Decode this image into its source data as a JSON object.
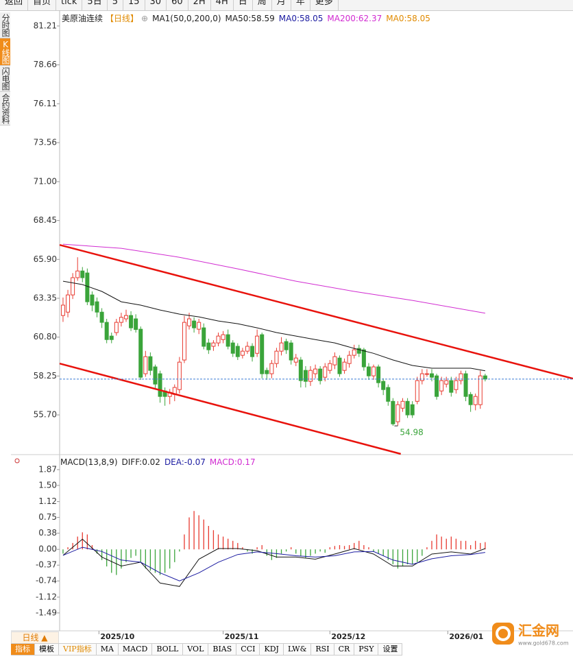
{
  "toolbar": [
    "返回",
    "首页",
    "tick",
    "5日",
    "5",
    "15",
    "30",
    "60",
    "2H",
    "4H",
    "日",
    "周",
    "月",
    "年",
    "更多"
  ],
  "side_tabs": [
    "分时图",
    "K线图",
    "闪电图",
    "合约资料"
  ],
  "bottom": {
    "period": "日线 ▲",
    "tabs": [
      "指标",
      "模板",
      "VIP指标",
      "MA",
      "MACD",
      "BOLL",
      "VOL",
      "BIAS",
      "CCI",
      "KDJ",
      "LW&",
      "RSI",
      "CR",
      "PSY",
      "设置"
    ]
  },
  "watermark": {
    "name": "汇金网",
    "url": "www.gold678.com"
  },
  "chart_data": [
    {
      "type": "candlestick",
      "title": "美原油连续",
      "period": "【日线】",
      "legend": [
        {
          "text": "MA1(50,0,200,0)",
          "color": "#222222"
        },
        {
          "text": "MA50:58.59",
          "color": "#222222"
        },
        {
          "text": "MA0:58.05",
          "color": "#1a1aa0"
        },
        {
          "text": "MA200:62.37",
          "color": "#d12ad1"
        },
        {
          "text": "MA0:58.05",
          "color": "#e08a00"
        }
      ],
      "up_color": "#e8392f",
      "down_color": "#3aa43a",
      "xlim": [
        -0.7,
        105.1
      ],
      "ylim": [
        53.14,
        82.24
      ],
      "yticks": [
        81.21,
        78.66,
        76.11,
        73.56,
        {
          "value": 71,
          "label": "71.00"
        },
        68.45,
        {
          "value": 65.9,
          "label": "65.90"
        },
        63.35,
        {
          "value": 60.8,
          "label": "60.80"
        },
        58.25,
        {
          "value": 55.7,
          "label": "55.70"
        }
      ],
      "xticks": [
        {
          "value": 7.4,
          "label": "2025/10"
        },
        {
          "value": 33,
          "label": "2025/11"
        },
        {
          "value": 55,
          "label": "2025/12"
        },
        {
          "value": 79.3,
          "label": "2026/01"
        }
      ],
      "candles": [
        [
          62.22,
          63.4,
          61.8,
          62.9
        ],
        [
          62.44,
          63.9,
          62.1,
          63.57
        ],
        [
          63.57,
          65.0,
          63.3,
          64.7
        ],
        [
          64.7,
          66.04,
          64.5,
          65.14
        ],
        [
          65.14,
          65.4,
          64.4,
          64.7
        ],
        [
          65.01,
          65.3,
          62.9,
          63.12
        ],
        [
          63.57,
          63.8,
          62.5,
          62.9
        ],
        [
          63.12,
          63.4,
          62.1,
          62.44
        ],
        [
          62.44,
          62.7,
          61.4,
          61.77
        ],
        [
          61.77,
          62.0,
          60.4,
          60.64
        ],
        [
          60.87,
          61.1,
          60.4,
          60.64
        ],
        [
          61.1,
          62.0,
          60.9,
          61.77
        ],
        [
          61.77,
          62.4,
          61.5,
          62.1
        ],
        [
          62.0,
          62.6,
          61.8,
          62.22
        ],
        [
          62.22,
          62.5,
          61.2,
          61.41
        ],
        [
          62.0,
          62.3,
          61.1,
          61.3
        ],
        [
          61.32,
          61.5,
          58.0,
          58.17
        ],
        [
          58.4,
          59.9,
          58.2,
          59.52
        ],
        [
          59.52,
          59.8,
          58.3,
          58.62
        ],
        [
          58.85,
          59.0,
          57.4,
          57.72
        ],
        [
          58.4,
          58.6,
          56.5,
          56.91
        ],
        [
          57.27,
          57.5,
          56.3,
          56.91
        ],
        [
          56.91,
          57.4,
          56.4,
          57.18
        ],
        [
          57.04,
          57.7,
          56.6,
          57.5
        ],
        [
          57.36,
          59.5,
          57.1,
          59.16
        ],
        [
          59.3,
          62.2,
          59.1,
          61.77
        ],
        [
          61.54,
          62.4,
          61.3,
          62.0
        ],
        [
          61.86,
          62.1,
          61.1,
          61.41
        ],
        [
          61.32,
          62.0,
          61.0,
          61.77
        ],
        [
          61.41,
          61.7,
          60.0,
          60.2
        ],
        [
          60.42,
          60.7,
          59.7,
          59.97
        ],
        [
          60.2,
          60.6,
          59.9,
          60.42
        ],
        [
          60.42,
          61.1,
          60.2,
          60.87
        ],
        [
          60.64,
          61.2,
          60.4,
          60.96
        ],
        [
          60.96,
          61.3,
          60.0,
          60.2
        ],
        [
          60.42,
          60.6,
          59.5,
          59.74
        ],
        [
          60.2,
          60.4,
          59.3,
          59.52
        ],
        [
          59.61,
          60.1,
          59.4,
          59.88
        ],
        [
          59.88,
          60.5,
          59.7,
          60.2
        ],
        [
          60.2,
          60.4,
          59.2,
          59.52
        ],
        [
          59.74,
          61.3,
          59.5,
          60.87
        ],
        [
          60.96,
          61.1,
          58.1,
          58.4
        ],
        [
          58.62,
          58.8,
          58.0,
          58.4
        ],
        [
          58.4,
          59.3,
          58.1,
          59.07
        ],
        [
          59.07,
          60.1,
          58.8,
          59.88
        ],
        [
          59.88,
          60.8,
          59.6,
          60.42
        ],
        [
          60.51,
          60.7,
          59.7,
          59.97
        ],
        [
          60.42,
          60.6,
          59.0,
          59.3
        ],
        [
          59.16,
          59.7,
          58.9,
          59.43
        ],
        [
          59.3,
          59.5,
          57.5,
          57.95
        ],
        [
          58.62,
          58.9,
          57.5,
          57.9
        ],
        [
          57.9,
          58.9,
          57.6,
          58.62
        ],
        [
          58.4,
          59.0,
          58.1,
          58.71
        ],
        [
          58.71,
          58.9,
          57.7,
          57.95
        ],
        [
          58.17,
          59.1,
          57.9,
          58.85
        ],
        [
          58.62,
          59.3,
          58.4,
          59.07
        ],
        [
          58.98,
          59.8,
          58.7,
          59.52
        ],
        [
          59.43,
          59.6,
          58.2,
          58.4
        ],
        [
          58.62,
          59.4,
          58.4,
          59.16
        ],
        [
          59.07,
          59.9,
          58.8,
          59.61
        ],
        [
          59.61,
          60.3,
          59.4,
          59.97
        ],
        [
          60.06,
          60.3,
          59.5,
          59.74
        ],
        [
          59.97,
          60.1,
          58.6,
          58.85
        ],
        [
          58.85,
          59.1,
          58.0,
          58.26
        ],
        [
          58.26,
          59.0,
          58.0,
          58.85
        ],
        [
          58.85,
          59.0,
          57.5,
          57.81
        ],
        [
          57.9,
          58.1,
          57.0,
          57.36
        ],
        [
          57.5,
          57.7,
          56.3,
          56.59
        ],
        [
          56.59,
          56.8,
          54.98,
          55.11
        ],
        [
          55.25,
          56.6,
          55.0,
          56.37
        ],
        [
          56.14,
          56.8,
          55.9,
          56.59
        ],
        [
          56.59,
          56.8,
          55.5,
          55.7
        ],
        [
          56.37,
          56.6,
          55.5,
          55.7
        ],
        [
          56.59,
          58.2,
          56.4,
          57.95
        ],
        [
          57.95,
          58.7,
          57.7,
          58.4
        ],
        [
          58.4,
          58.7,
          58.2,
          58.4
        ],
        [
          58.4,
          58.7,
          57.9,
          58.17
        ],
        [
          58.26,
          58.4,
          56.7,
          56.91
        ],
        [
          57.27,
          58.2,
          57.0,
          57.95
        ],
        [
          57.72,
          58.2,
          57.5,
          57.95
        ],
        [
          57.95,
          58.2,
          56.9,
          57.18
        ],
        [
          57.36,
          58.2,
          57.1,
          57.95
        ],
        [
          57.95,
          58.6,
          57.7,
          58.4
        ],
        [
          58.4,
          58.6,
          56.6,
          56.91
        ],
        [
          57.04,
          57.2,
          55.9,
          56.37
        ],
        [
          56.37,
          57.1,
          56.0,
          56.91
        ],
        [
          56.37,
          58.6,
          56.1,
          58.26
        ],
        [
          58.26,
          58.4,
          57.9,
          58.05
        ]
      ],
      "series": [
        {
          "name": "MA50",
          "color": "#111111",
          "x": [
            0,
            4,
            8,
            12,
            16,
            20,
            24,
            28,
            32,
            36,
            40,
            44,
            48,
            52,
            56,
            60,
            64,
            68,
            72,
            76,
            80,
            84,
            87
          ],
          "values": [
            64.47,
            64.25,
            63.8,
            63.12,
            62.9,
            62.58,
            62.31,
            62.13,
            61.86,
            61.68,
            61.41,
            61.1,
            60.87,
            60.64,
            60.42,
            60.06,
            59.74,
            59.3,
            58.94,
            58.76,
            58.76,
            58.76,
            58.59
          ]
        },
        {
          "name": "MA200",
          "color": "#d12ad1",
          "x": [
            0,
            12,
            24,
            36,
            48,
            60,
            72,
            87
          ],
          "values": [
            66.9,
            66.63,
            66.04,
            65.28,
            64.47,
            63.8,
            63.21,
            62.37
          ]
        }
      ],
      "trend_lines": [
        {
          "color": "#e8120c",
          "x": [
            -0.7,
            105.1
          ],
          "values": [
            66.85,
            58.08
          ]
        },
        {
          "color": "#e8120c",
          "x": [
            -0.7,
            69.6
          ],
          "values": [
            59.07,
            53.14
          ]
        }
      ],
      "last_price": {
        "value": 58.05,
        "color": "#3a7bd5"
      },
      "low_label": {
        "x": 69,
        "value": 54.98,
        "color": "#3aa43a"
      }
    },
    {
      "type": "macd",
      "legend": [
        {
          "text": "MACD(13,8,9)",
          "color": "#222222"
        },
        {
          "text": "DIFF:0.02",
          "color": "#222222"
        },
        {
          "text": "DEA:-0.07",
          "color": "#1a1aa0"
        },
        {
          "text": "MACD:0.17",
          "color": "#d12ad1"
        }
      ],
      "xlim": [
        -0.7,
        105.1
      ],
      "ylim": [
        -1.91,
        2.19
      ],
      "yticks": [
        1.87,
        {
          "value": 1.5,
          "label": "1.50"
        },
        1.12,
        0.75,
        0.38,
        {
          "value": 0,
          "label": "0.00"
        },
        -0.37,
        -0.74,
        -1.12,
        -1.49
      ],
      "histogram": {
        "up_color": "#e8392f",
        "down_color": "#3aa43a",
        "values": [
          -0.1,
          0.05,
          0.15,
          0.3,
          0.4,
          0.35,
          0.1,
          -0.1,
          -0.25,
          -0.4,
          -0.55,
          -0.6,
          -0.45,
          -0.3,
          -0.2,
          -0.15,
          -0.3,
          -0.45,
          -0.5,
          -0.55,
          -0.6,
          -0.55,
          -0.45,
          -0.3,
          -0.05,
          0.35,
          0.75,
          0.9,
          0.8,
          0.7,
          0.55,
          0.45,
          0.35,
          0.3,
          0.25,
          0.2,
          0.15,
          0.05,
          -0.05,
          -0.1,
          0.05,
          0.1,
          -0.15,
          -0.25,
          -0.2,
          -0.1,
          -0.05,
          0.05,
          -0.1,
          -0.15,
          -0.2,
          -0.15,
          -0.1,
          -0.05,
          -0.08,
          0.05,
          0.08,
          0.1,
          0.08,
          0.1,
          0.15,
          0.2,
          0.1,
          0.05,
          -0.05,
          -0.1,
          -0.15,
          -0.25,
          -0.35,
          -0.45,
          -0.4,
          -0.35,
          -0.35,
          -0.3,
          -0.15,
          0.05,
          0.2,
          0.35,
          0.3,
          0.25,
          0.3,
          0.25,
          0.2,
          0.2,
          0.1,
          0.2,
          0.15,
          0.17
        ]
      },
      "series": [
        {
          "name": "DIFF",
          "color": "#111111",
          "x": [
            0,
            4,
            8,
            12,
            16,
            20,
            24,
            28,
            32,
            36,
            40,
            44,
            48,
            52,
            56,
            60,
            64,
            68,
            72,
            76,
            80,
            84,
            87
          ],
          "values": [
            -0.14,
            0.24,
            -0.18,
            -0.39,
            -0.3,
            -0.79,
            -0.87,
            -0.23,
            0.02,
            0.02,
            -0.03,
            -0.18,
            -0.18,
            -0.23,
            -0.11,
            0.02,
            -0.11,
            -0.39,
            -0.39,
            -0.11,
            -0.06,
            -0.11,
            0.02
          ]
        },
        {
          "name": "DEA",
          "color": "#1a1aa0",
          "x": [
            0,
            4,
            8,
            12,
            16,
            20,
            24,
            28,
            32,
            36,
            40,
            44,
            48,
            52,
            56,
            60,
            64,
            68,
            72,
            76,
            80,
            84,
            87
          ],
          "values": [
            -0.14,
            0.05,
            -0.05,
            -0.25,
            -0.3,
            -0.55,
            -0.74,
            -0.55,
            -0.3,
            -0.12,
            -0.06,
            -0.1,
            -0.15,
            -0.18,
            -0.15,
            -0.06,
            -0.05,
            -0.25,
            -0.35,
            -0.22,
            -0.15,
            -0.12,
            -0.07
          ]
        }
      ]
    }
  ]
}
